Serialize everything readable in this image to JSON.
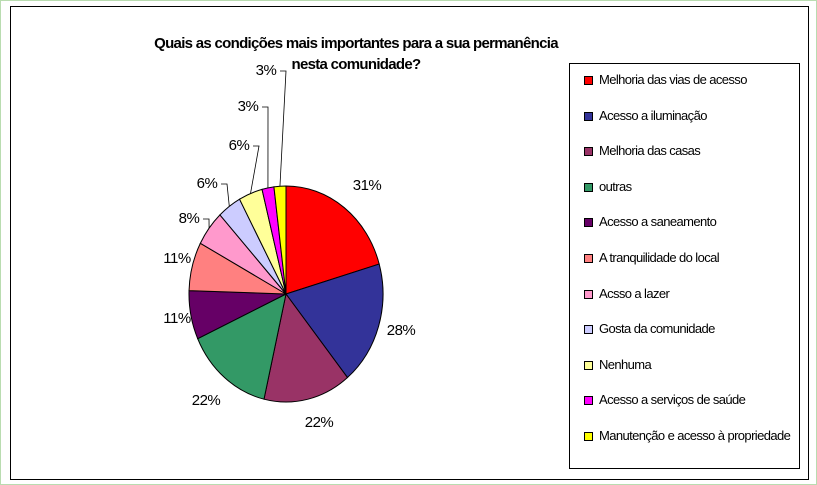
{
  "chart_data": {
    "type": "pie",
    "title": "Quais as condições mais importantes para a sua permanência nesta comunidade?",
    "categories": [
      "Melhoria das vias de acesso",
      "Acesso a iluminação",
      "Melhoria das casas",
      "outras",
      "Acesso a saneamento",
      "A tranquilidade do local",
      "Acsso a lazer",
      "Gosta da comunidade",
      "Nenhuma",
      "Acesso a serviços de saúde",
      "Manutenção e acesso à propriedade"
    ],
    "values": [
      31,
      28,
      22,
      22,
      11,
      11,
      8,
      6,
      6,
      3,
      3
    ],
    "value_labels": [
      "31%",
      "28%",
      "22%",
      "22%",
      "11%",
      "11%",
      "8%",
      "6%",
      "6%",
      "3%",
      "3%"
    ],
    "colors": [
      "#ff0000",
      "#333399",
      "#993366",
      "#339966",
      "#660066",
      "#ff8080",
      "#ff99cc",
      "#ccccff",
      "#ffff99",
      "#ff00ff",
      "#ffff00"
    ],
    "legend": "right"
  }
}
